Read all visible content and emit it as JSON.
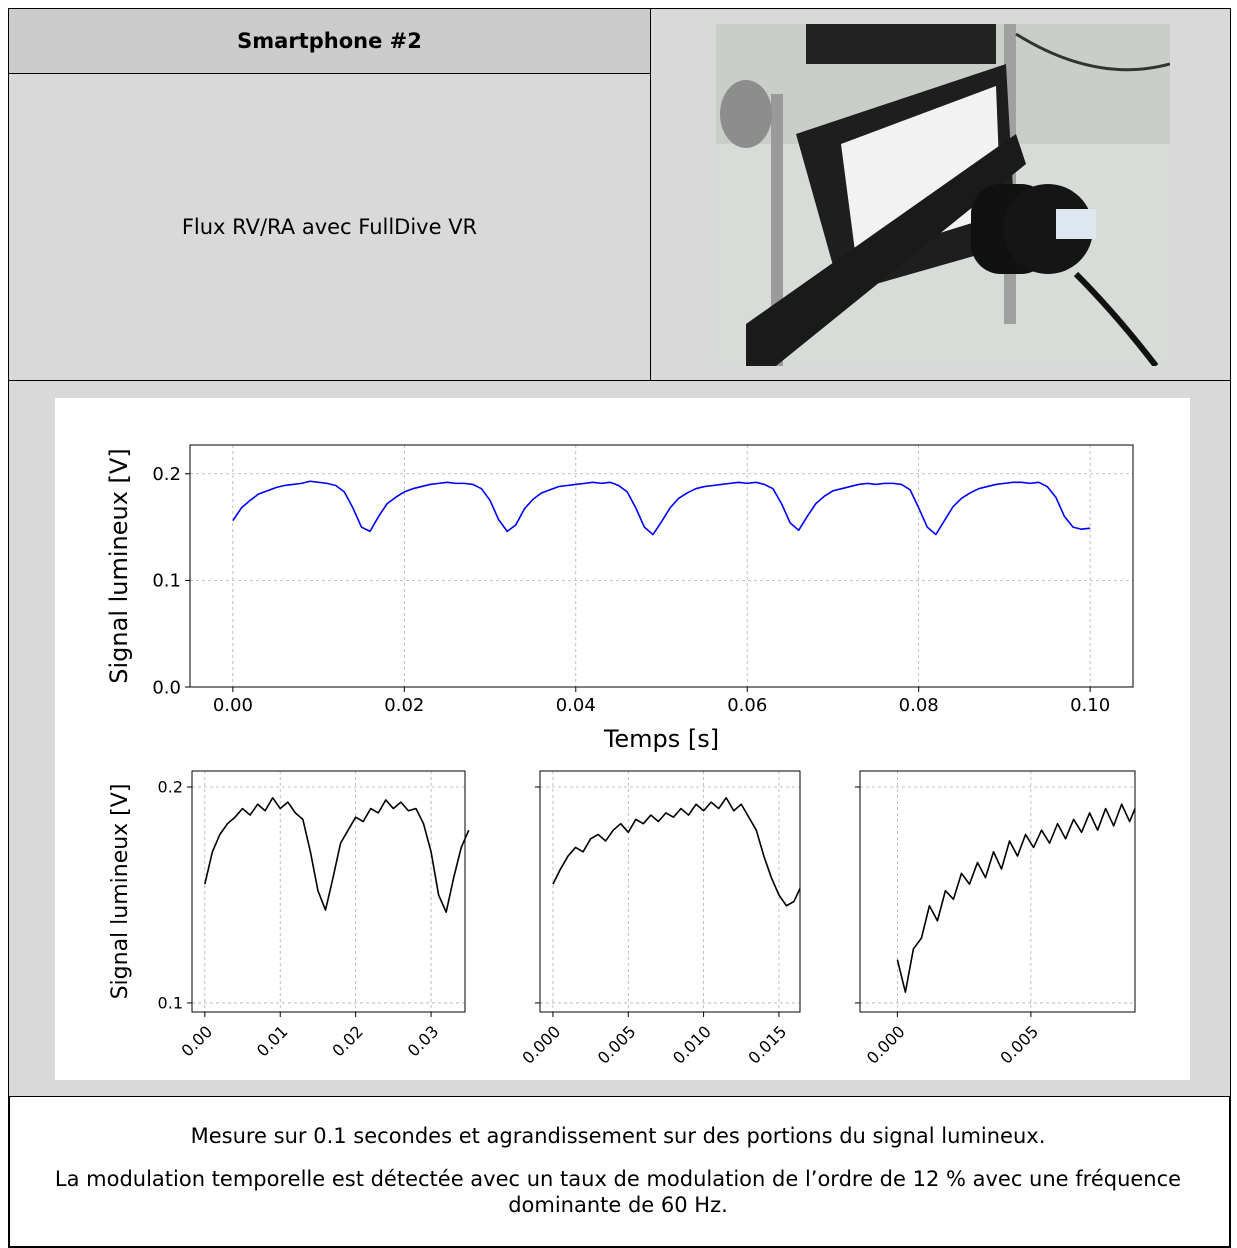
{
  "header": {
    "title": "Smartphone #2",
    "description": "Flux RV/RA avec FullDive VR"
  },
  "chart_data": [
    {
      "type": "line",
      "x_label": "Temps [s]",
      "y_label": "Signal lumineux [V]",
      "color": "#0000ff",
      "grid": true,
      "xlim": [
        -0.005,
        0.105
      ],
      "ylim": [
        0,
        0.227
      ],
      "xticks": [
        {
          "value": 0,
          "label": "0.00"
        },
        {
          "value": 0.02,
          "label": "0.02"
        },
        {
          "value": 0.04,
          "label": "0.04"
        },
        {
          "value": 0.06,
          "label": "0.06"
        },
        {
          "value": 0.08,
          "label": "0.08"
        },
        {
          "value": 0.1,
          "label": "0.10"
        }
      ],
      "yticks": [
        {
          "value": 0,
          "label": "0.0"
        },
        0.1,
        0.2
      ],
      "x": [
        0,
        0.001,
        0.002,
        0.003,
        0.004,
        0.005,
        0.006,
        0.007,
        0.008,
        0.009,
        0.01,
        0.011,
        0.012,
        0.013,
        0.014,
        0.015,
        0.016,
        0.017,
        0.018,
        0.019,
        0.02,
        0.021,
        0.022,
        0.023,
        0.024,
        0.025,
        0.026,
        0.027,
        0.028,
        0.029,
        0.03,
        0.031,
        0.032,
        0.033,
        0.034,
        0.035,
        0.036,
        0.037,
        0.038,
        0.039,
        0.04,
        0.041,
        0.042,
        0.043,
        0.044,
        0.045,
        0.046,
        0.047,
        0.048,
        0.049,
        0.05,
        0.051,
        0.052,
        0.053,
        0.054,
        0.055,
        0.056,
        0.057,
        0.058,
        0.059,
        0.06,
        0.061,
        0.062,
        0.063,
        0.064,
        0.065,
        0.066,
        0.067,
        0.068,
        0.069,
        0.07,
        0.071,
        0.072,
        0.073,
        0.074,
        0.075,
        0.076,
        0.077,
        0.078,
        0.079,
        0.08,
        0.081,
        0.082,
        0.083,
        0.084,
        0.085,
        0.086,
        0.087,
        0.088,
        0.089,
        0.09,
        0.091,
        0.092,
        0.093,
        0.094,
        0.095,
        0.096,
        0.097,
        0.098,
        0.099,
        0.1
      ],
      "values": [
        0.156,
        0.168,
        0.175,
        0.181,
        0.184,
        0.187,
        0.189,
        0.19,
        0.191,
        0.193,
        0.192,
        0.191,
        0.189,
        0.183,
        0.168,
        0.15,
        0.146,
        0.16,
        0.172,
        0.178,
        0.183,
        0.186,
        0.188,
        0.19,
        0.191,
        0.192,
        0.191,
        0.191,
        0.19,
        0.186,
        0.175,
        0.157,
        0.146,
        0.152,
        0.167,
        0.176,
        0.182,
        0.185,
        0.188,
        0.189,
        0.19,
        0.191,
        0.192,
        0.191,
        0.192,
        0.189,
        0.183,
        0.168,
        0.15,
        0.143,
        0.155,
        0.168,
        0.177,
        0.182,
        0.186,
        0.188,
        0.189,
        0.19,
        0.191,
        0.192,
        0.191,
        0.192,
        0.19,
        0.186,
        0.172,
        0.154,
        0.147,
        0.16,
        0.172,
        0.179,
        0.184,
        0.186,
        0.188,
        0.19,
        0.191,
        0.19,
        0.191,
        0.191,
        0.19,
        0.185,
        0.168,
        0.15,
        0.143,
        0.156,
        0.169,
        0.177,
        0.182,
        0.186,
        0.188,
        0.19,
        0.191,
        0.192,
        0.192,
        0.191,
        0.192,
        0.188,
        0.178,
        0.16,
        0.15,
        0.148,
        0.149
      ]
    },
    {
      "type": "line",
      "y_label": "Signal lumineux [V]",
      "color": "#000000",
      "grid": true,
      "xtick_rotation": 45,
      "xlim": [
        -0.0017,
        0.0345
      ],
      "ylim": [
        0.0958,
        0.2074
      ],
      "xticks": [
        {
          "value": 0,
          "label": "0.00"
        },
        0.01,
        0.02,
        0.03
      ],
      "yticks": [
        0.1,
        0.2
      ],
      "x": [
        0,
        0.001,
        0.002,
        0.003,
        0.004,
        0.005,
        0.006,
        0.007,
        0.008,
        0.009,
        0.01,
        0.011,
        0.012,
        0.013,
        0.014,
        0.015,
        0.016,
        0.017,
        0.018,
        0.019,
        0.02,
        0.021,
        0.022,
        0.023,
        0.024,
        0.025,
        0.026,
        0.027,
        0.028,
        0.029,
        0.03,
        0.031,
        0.032,
        0.033,
        0.034,
        0.035
      ],
      "values": [
        0.155,
        0.17,
        0.178,
        0.183,
        0.186,
        0.19,
        0.187,
        0.192,
        0.189,
        0.195,
        0.19,
        0.193,
        0.188,
        0.185,
        0.17,
        0.152,
        0.143,
        0.158,
        0.174,
        0.18,
        0.186,
        0.184,
        0.19,
        0.188,
        0.194,
        0.19,
        0.193,
        0.189,
        0.19,
        0.183,
        0.17,
        0.15,
        0.142,
        0.158,
        0.172,
        0.18
      ]
    },
    {
      "type": "line",
      "color": "#000000",
      "grid": true,
      "xtick_rotation": 45,
      "ytick_labels": false,
      "xlim": [
        -0.00086,
        0.0164
      ],
      "ylim": [
        0.0958,
        0.2074
      ],
      "xticks": [
        {
          "value": 0,
          "label": "0.000"
        },
        {
          "value": 0.005,
          "label": "0.005"
        },
        {
          "value": 0.01,
          "label": "0.010"
        },
        {
          "value": 0.015,
          "label": "0.015"
        }
      ],
      "yticks": [
        0.1,
        0.2
      ],
      "x": [
        0,
        0.0005,
        0.001,
        0.0015,
        0.002,
        0.0025,
        0.003,
        0.0035,
        0.004,
        0.0045,
        0.005,
        0.0055,
        0.006,
        0.0065,
        0.007,
        0.0075,
        0.008,
        0.0085,
        0.009,
        0.0095,
        0.01,
        0.0105,
        0.011,
        0.0115,
        0.012,
        0.0125,
        0.013,
        0.0135,
        0.014,
        0.0145,
        0.015,
        0.0155,
        0.016,
        0.0164
      ],
      "values": [
        0.155,
        0.162,
        0.168,
        0.172,
        0.17,
        0.176,
        0.178,
        0.175,
        0.18,
        0.183,
        0.179,
        0.185,
        0.183,
        0.187,
        0.184,
        0.188,
        0.186,
        0.19,
        0.187,
        0.192,
        0.189,
        0.193,
        0.19,
        0.195,
        0.189,
        0.192,
        0.186,
        0.18,
        0.168,
        0.158,
        0.15,
        0.145,
        0.147,
        0.153
      ]
    },
    {
      "type": "line",
      "color": "#000000",
      "grid": true,
      "xtick_rotation": 45,
      "ytick_labels": false,
      "xlim": [
        -0.0014,
        0.0089
      ],
      "ylim": [
        0.0958,
        0.2074
      ],
      "xticks": [
        {
          "value": 0,
          "label": "0.000"
        },
        {
          "value": 0.005,
          "label": "0.005"
        }
      ],
      "yticks": [
        0.1,
        0.2
      ],
      "x": [
        0,
        0.0003,
        0.0006,
        0.0009,
        0.0012,
        0.0015,
        0.0018,
        0.0021,
        0.0024,
        0.0027,
        0.003,
        0.0033,
        0.0036,
        0.0039,
        0.0042,
        0.0045,
        0.0048,
        0.0051,
        0.0054,
        0.0057,
        0.006,
        0.0063,
        0.0066,
        0.0069,
        0.0072,
        0.0075,
        0.0078,
        0.0081,
        0.0084,
        0.0087,
        0.0089
      ],
      "values": [
        0.12,
        0.105,
        0.125,
        0.13,
        0.145,
        0.138,
        0.152,
        0.148,
        0.16,
        0.155,
        0.165,
        0.158,
        0.17,
        0.162,
        0.175,
        0.168,
        0.178,
        0.172,
        0.18,
        0.174,
        0.183,
        0.176,
        0.185,
        0.179,
        0.188,
        0.18,
        0.19,
        0.182,
        0.192,
        0.184,
        0.19
      ]
    }
  ],
  "caption": [
    "Mesure sur 0.1 secondes et agrandissement sur des portions du signal lumineux.",
    "La modulation temporelle est détectée avec un taux de modulation de l’ordre de 12 % avec une fréquence dominante de 60 Hz."
  ]
}
